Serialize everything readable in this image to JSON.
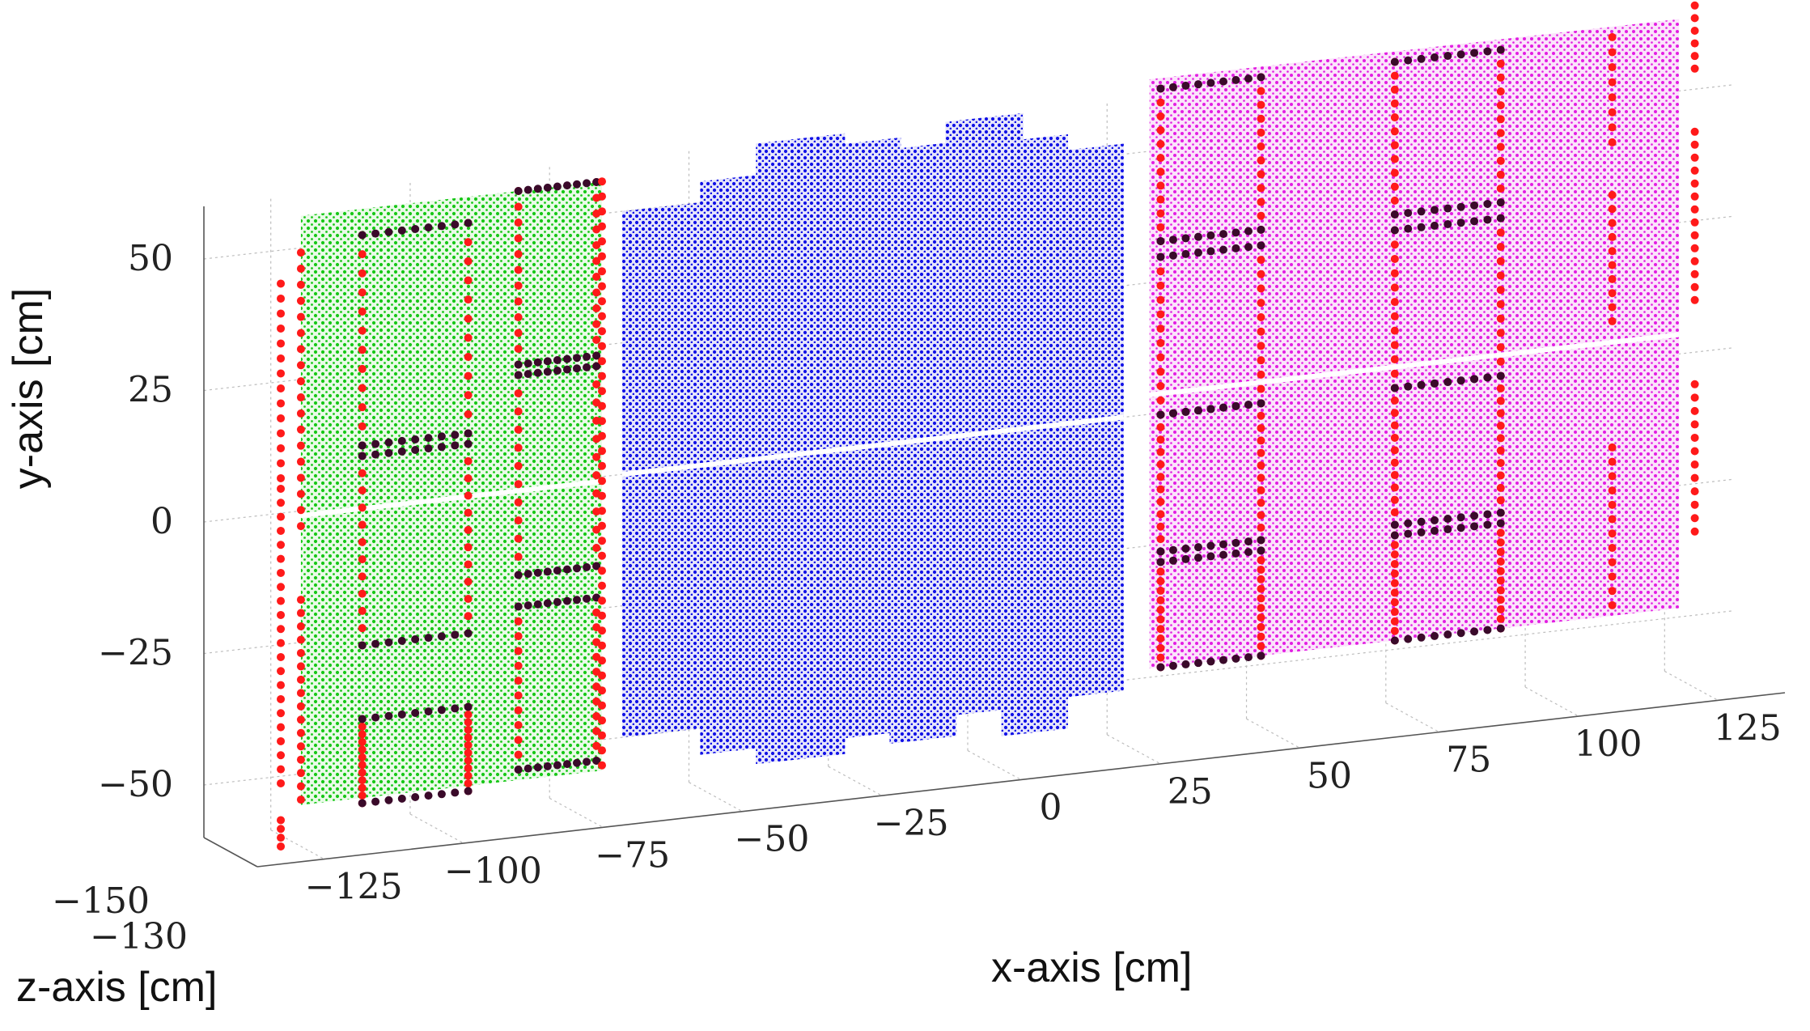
{
  "chart_data": {
    "type": "scatter",
    "projection": "3d",
    "title": "",
    "xlabel": "x-axis [cm]",
    "ylabel": "y-axis [cm]",
    "zlabel": "z-axis [cm]",
    "x_ticks": [
      "−125",
      "−100",
      "−75",
      "−50",
      "−25",
      "0",
      "25",
      "50",
      "75",
      "100",
      "125"
    ],
    "y_ticks": [
      "50",
      "25",
      "0",
      "−25",
      "−50"
    ],
    "z_ticks": [
      "−150",
      "−130"
    ],
    "xlim": [
      -137,
      137
    ],
    "ylim": [
      -60,
      60
    ],
    "grid": true,
    "colors": {
      "green_panel": "#18c718",
      "blue_panels": "#1212e6",
      "magenta_panel": "#e21ee2",
      "red_markers": "#ff1a1a",
      "dark_markers": "#3a0a2a"
    },
    "series": [
      {
        "name": "green detector plane",
        "color": "#18c718",
        "x_range": [
          -118,
          -64
        ],
        "y_range": [
          -57,
          55
        ]
      },
      {
        "name": "blue detector planes",
        "color": "#1212e6",
        "x_range": [
          -62,
          28
        ],
        "y_range": [
          -58,
          60
        ]
      },
      {
        "name": "magenta detector plane",
        "color": "#e21ee2",
        "x_range": [
          35,
          130
        ],
        "y_range": [
          -50,
          62
        ]
      },
      {
        "name": "red edge markers",
        "color": "#ff1a1a"
      },
      {
        "name": "dark window markers",
        "color": "#3a0a2a"
      }
    ]
  }
}
